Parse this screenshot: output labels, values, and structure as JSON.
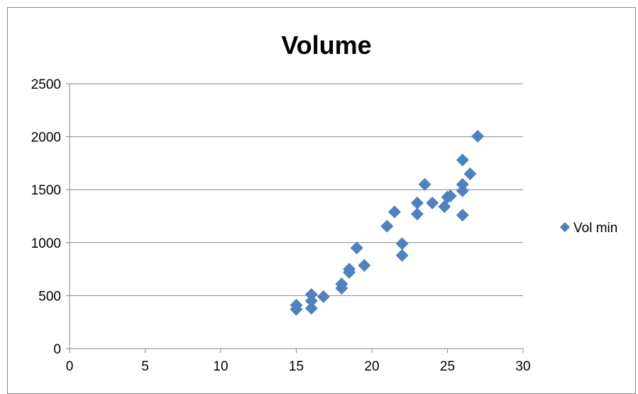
{
  "chart_data": {
    "type": "scatter",
    "title": "Volume",
    "xlabel": "",
    "ylabel": "",
    "xlim": [
      0,
      30
    ],
    "ylim": [
      0,
      2500
    ],
    "x_ticks": [
      "0",
      "5",
      "10",
      "15",
      "20",
      "25",
      "30"
    ],
    "y_ticks": [
      "0",
      "500",
      "1000",
      "1500",
      "2000",
      "2500"
    ],
    "grid": "horizontal",
    "legend_position": "right",
    "series": [
      {
        "name": "Vol min",
        "color": "#4F81BD",
        "marker": "diamond",
        "points": [
          [
            15,
            370
          ],
          [
            15,
            410
          ],
          [
            16,
            380
          ],
          [
            16,
            450
          ],
          [
            16,
            510
          ],
          [
            16.8,
            490
          ],
          [
            18,
            570
          ],
          [
            18,
            610
          ],
          [
            18.5,
            720
          ],
          [
            18.5,
            750
          ],
          [
            19,
            950
          ],
          [
            19.5,
            785
          ],
          [
            21,
            1155
          ],
          [
            21.5,
            1290
          ],
          [
            22,
            880
          ],
          [
            22,
            990
          ],
          [
            23,
            1270
          ],
          [
            23,
            1375
          ],
          [
            23.5,
            1550
          ],
          [
            24,
            1375
          ],
          [
            24.8,
            1340
          ],
          [
            25,
            1430
          ],
          [
            25.2,
            1440
          ],
          [
            26,
            1260
          ],
          [
            26,
            1490
          ],
          [
            26,
            1550
          ],
          [
            26,
            1780
          ],
          [
            26.5,
            1650
          ],
          [
            27,
            2005
          ]
        ]
      }
    ]
  }
}
